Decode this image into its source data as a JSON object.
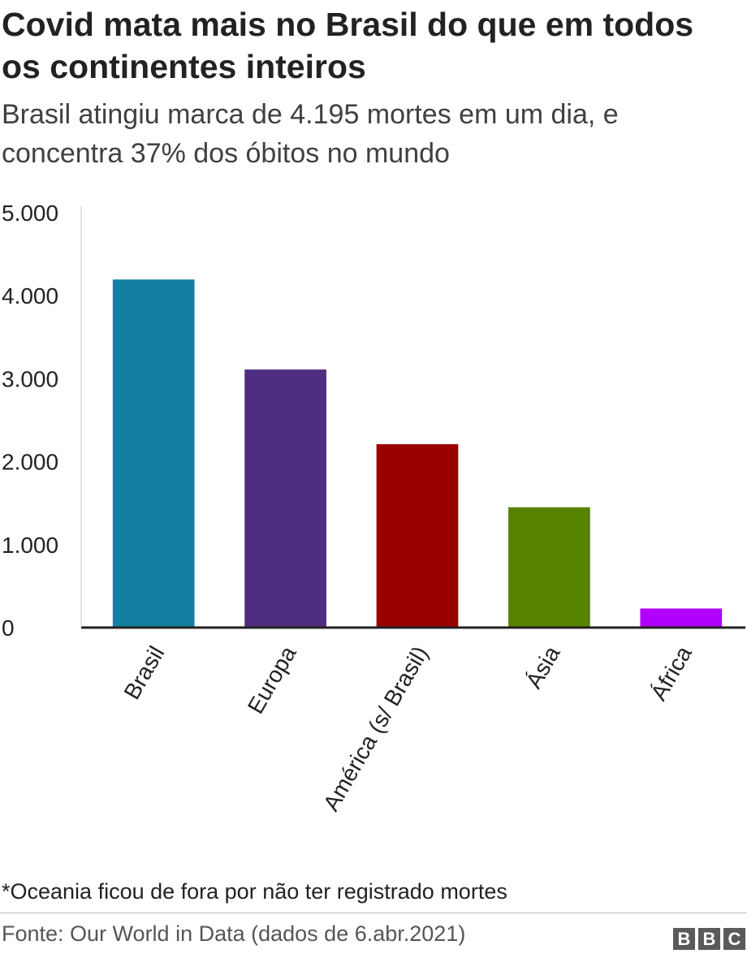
{
  "header": {
    "title": "Covid mata mais no Brasil do que em todos os continentes inteiros",
    "subtitle": "Brasil atingiu marca de 4.195 mortes em um dia, e concentra 37% dos óbitos no mundo"
  },
  "chart_data": {
    "type": "bar",
    "categories": [
      "Brasil",
      "Europa",
      "América (s/ Brasil)",
      "Ásia",
      "África"
    ],
    "values": [
      4195,
      3110,
      2210,
      1450,
      230
    ],
    "colors": [
      "#1380a1",
      "#4f2d7f",
      "#990000",
      "#588300",
      "#b200ff"
    ],
    "ylim": [
      0,
      5000
    ],
    "yticks": [
      0,
      1000,
      2000,
      3000,
      4000,
      5000
    ],
    "ytick_labels": [
      "0",
      "1.000",
      "2.000",
      "3.000",
      "4.000",
      "5.000"
    ],
    "xlabel": "",
    "ylabel": "",
    "grid": false,
    "legend": "none"
  },
  "footer": {
    "note": "*Oceania ficou de fora por não ter registrado mortes",
    "source": "Fonte: Our World in Data (dados de 6.abr.2021)",
    "logo_letters": [
      "B",
      "B",
      "C"
    ]
  }
}
